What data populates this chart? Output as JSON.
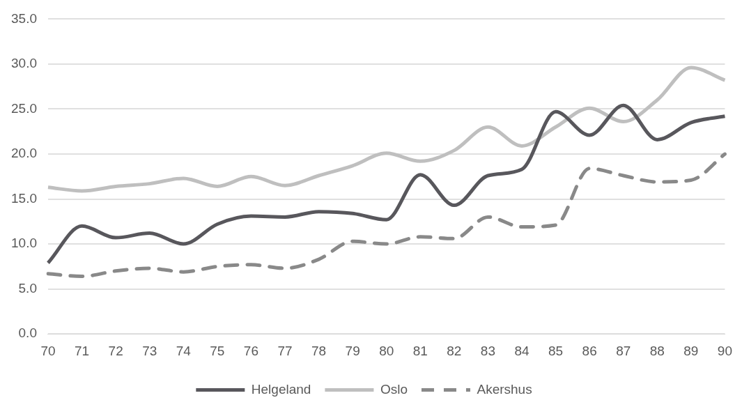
{
  "chart_data": {
    "type": "line",
    "categories": [
      "70",
      "71",
      "72",
      "73",
      "74",
      "75",
      "76",
      "77",
      "78",
      "79",
      "80",
      "81",
      "82",
      "83",
      "84",
      "85",
      "86",
      "87",
      "88",
      "89",
      "90"
    ],
    "series": [
      {
        "name": "Helgeland",
        "color": "#58575c",
        "line_style": "solid",
        "values": [
          7.9,
          12.0,
          10.7,
          11.2,
          10.0,
          12.2,
          13.1,
          13.0,
          13.6,
          13.4,
          12.7,
          17.7,
          14.3,
          17.6,
          18.3,
          24.7,
          22.1,
          25.4,
          21.6,
          23.5,
          24.2
        ]
      },
      {
        "name": "Oslo",
        "color": "#bfbfbf",
        "line_style": "solid",
        "values": [
          16.3,
          15.9,
          16.4,
          16.7,
          17.3,
          16.4,
          17.5,
          16.5,
          17.6,
          18.7,
          20.1,
          19.2,
          20.4,
          23.0,
          20.9,
          23.0,
          25.1,
          23.6,
          26.0,
          29.6,
          28.2
        ]
      },
      {
        "name": "Akershus",
        "color": "#898989",
        "line_style": "dashed",
        "values": [
          6.7,
          6.4,
          7.0,
          7.3,
          6.9,
          7.5,
          7.7,
          7.3,
          8.3,
          10.3,
          10.0,
          10.8,
          10.6,
          13.0,
          11.9,
          12.1,
          18.4,
          17.6,
          16.9,
          17.1,
          20.0
        ]
      }
    ],
    "ylim": [
      0,
      35
    ],
    "yticks": [
      {
        "value": 0,
        "label": "0.0"
      },
      {
        "value": 5,
        "label": "5.0"
      },
      {
        "value": 10,
        "label": "10.0"
      },
      {
        "value": 15,
        "label": "15.0"
      },
      {
        "value": 20,
        "label": "20.0"
      },
      {
        "value": 25,
        "label": "25.0"
      },
      {
        "value": 30,
        "label": "30.0"
      },
      {
        "value": 35,
        "label": "35.0"
      }
    ],
    "grid": "y",
    "legend": "bottom",
    "marker": "none"
  }
}
